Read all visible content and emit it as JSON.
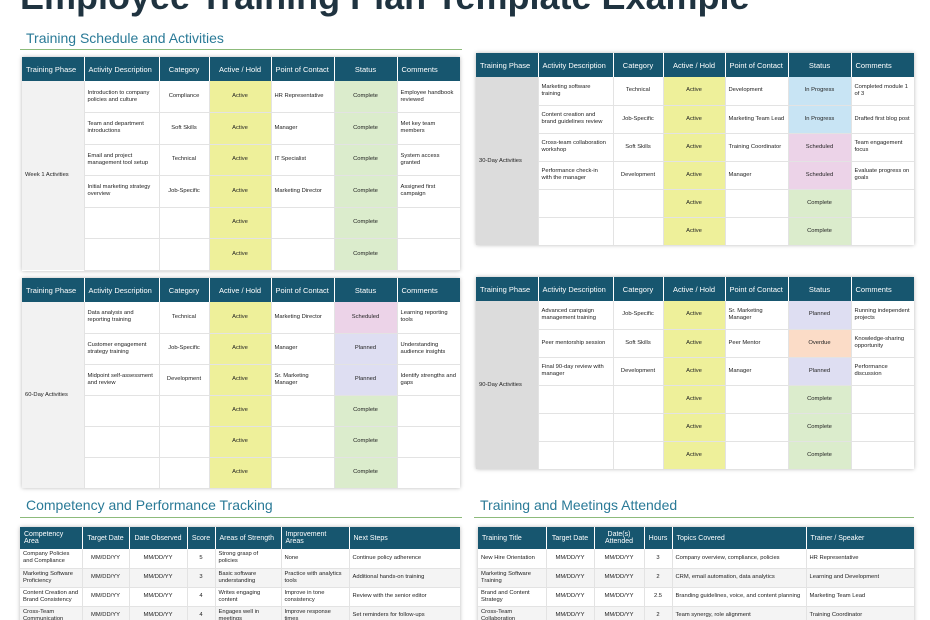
{
  "page": {
    "title": "Employee Training Plan Template Example"
  },
  "sections": {
    "schedule_title": "Training Schedule and Activities",
    "competency_title": "Competency and Performance Tracking",
    "meetings_title": "Training and Meetings Attended"
  },
  "schedule_headers": [
    "Training Phase",
    "Activity Description",
    "Category",
    "Active / Hold",
    "Point of Contact",
    "Status",
    "Comments"
  ],
  "week1": {
    "phase": "Week 1 Activities",
    "rows": [
      {
        "activity": "Introduction to company policies and culture",
        "category": "Compliance",
        "hold": "Active",
        "contact": "HR Representative",
        "status": "Complete",
        "comments": "Employee handbook reviewed"
      },
      {
        "activity": "Team and department introductions",
        "category": "Soft Skills",
        "hold": "Active",
        "contact": "Manager",
        "status": "Complete",
        "comments": "Met key team members"
      },
      {
        "activity": "Email and project management tool setup",
        "category": "Technical",
        "hold": "Active",
        "contact": "IT Specialist",
        "status": "Complete",
        "comments": "System access granted"
      },
      {
        "activity": "Initial marketing strategy overview",
        "category": "Job-Specific",
        "hold": "Active",
        "contact": "Marketing Director",
        "status": "Complete",
        "comments": "Assigned first campaign"
      },
      {
        "activity": "",
        "category": "",
        "hold": "Active",
        "contact": "",
        "status": "Complete",
        "comments": ""
      },
      {
        "activity": "",
        "category": "",
        "hold": "Active",
        "contact": "",
        "status": "Complete",
        "comments": ""
      }
    ]
  },
  "day30": {
    "phase": "30-Day Activities",
    "rows": [
      {
        "activity": "Marketing software training",
        "category": "Technical",
        "hold": "Active",
        "contact": "Development",
        "status": "In Progress",
        "comments": "Completed module 1 of 3"
      },
      {
        "activity": "Content creation and brand guidelines review",
        "category": "Job-Specific",
        "hold": "Active",
        "contact": "Marketing Team Lead",
        "status": "In Progress",
        "comments": "Drafted first blog post"
      },
      {
        "activity": "Cross-team collaboration workshop",
        "category": "Soft Skills",
        "hold": "Active",
        "contact": "Training Coordinator",
        "status": "Scheduled",
        "comments": "Team engagement focus"
      },
      {
        "activity": "Performance check-in with the manager",
        "category": "Development",
        "hold": "Active",
        "contact": "Manager",
        "status": "Scheduled",
        "comments": "Evaluate progress on goals"
      },
      {
        "activity": "",
        "category": "",
        "hold": "Active",
        "contact": "",
        "status": "Complete",
        "comments": ""
      },
      {
        "activity": "",
        "category": "",
        "hold": "Active",
        "contact": "",
        "status": "Complete",
        "comments": ""
      }
    ]
  },
  "day60": {
    "phase": "60-Day Activities",
    "rows": [
      {
        "activity": "Data analysis and reporting training",
        "category": "Technical",
        "hold": "Active",
        "contact": "Marketing Director",
        "status": "Scheduled",
        "comments": "Learning reporting tools"
      },
      {
        "activity": "Customer engagement strategy training",
        "category": "Job-Specific",
        "hold": "Active",
        "contact": "Manager",
        "status": "Planned",
        "comments": "Understanding audience insights"
      },
      {
        "activity": "Midpoint self-assessment and review",
        "category": "Development",
        "hold": "Active",
        "contact": "Sr. Marketing Manager",
        "status": "Planned",
        "comments": "Identify strengths and gaps"
      },
      {
        "activity": "",
        "category": "",
        "hold": "Active",
        "contact": "",
        "status": "Complete",
        "comments": ""
      },
      {
        "activity": "",
        "category": "",
        "hold": "Active",
        "contact": "",
        "status": "Complete",
        "comments": ""
      },
      {
        "activity": "",
        "category": "",
        "hold": "Active",
        "contact": "",
        "status": "Complete",
        "comments": ""
      }
    ]
  },
  "day90": {
    "phase": "90-Day Activities",
    "rows": [
      {
        "activity": "Advanced campaign management training",
        "category": "Job-Specific",
        "hold": "Active",
        "contact": "Sr. Marketing Manager",
        "status": "Planned",
        "comments": "Running independent projects"
      },
      {
        "activity": "Peer mentorship session",
        "category": "Soft Skills",
        "hold": "Active",
        "contact": "Peer Mentor",
        "status": "Overdue",
        "comments": "Knowledge-sharing opportunity"
      },
      {
        "activity": "Final 90-day review with manager",
        "category": "Development",
        "hold": "Active",
        "contact": "Manager",
        "status": "Planned",
        "comments": "Performance discussion"
      },
      {
        "activity": "",
        "category": "",
        "hold": "Active",
        "contact": "",
        "status": "Complete",
        "comments": ""
      },
      {
        "activity": "",
        "category": "",
        "hold": "Active",
        "contact": "",
        "status": "Complete",
        "comments": ""
      },
      {
        "activity": "",
        "category": "",
        "hold": "Active",
        "contact": "",
        "status": "Complete",
        "comments": ""
      }
    ]
  },
  "competency": {
    "headers": [
      "Competency Area",
      "Target Date",
      "Date Observed",
      "Score",
      "Areas of Strength",
      "Improvement Areas",
      "Next Steps"
    ],
    "rows": [
      {
        "area": "Company Policies and Compliance",
        "target": "MM/DD/YY",
        "observed": "MM/DD/YY",
        "score": "5",
        "strength": "Strong grasp of policies",
        "improve": "None",
        "next": "Continue policy adherence"
      },
      {
        "area": "Marketing Software Proficiency",
        "target": "MM/DD/YY",
        "observed": "MM/DD/YY",
        "score": "3",
        "strength": "Basic software understanding",
        "improve": "Practice with analytics tools",
        "next": "Additional hands-on training"
      },
      {
        "area": "Content Creation and Brand Consistency",
        "target": "MM/DD/YY",
        "observed": "MM/DD/YY",
        "score": "4",
        "strength": "Writes engaging content",
        "improve": "Improve in tone consistency",
        "next": "Review with the senior editor"
      },
      {
        "area": "Cross-Team Communication",
        "target": "MM/DD/YY",
        "observed": "MM/DD/YY",
        "score": "4",
        "strength": "Engages well in meetings",
        "improve": "Improve response times",
        "next": "Set reminders for follow-ups"
      }
    ]
  },
  "meetings": {
    "headers": [
      "Training Title",
      "Target Date",
      "Date(s) Attended",
      "Hours",
      "Topics Covered",
      "Trainer / Speaker"
    ],
    "rows": [
      {
        "title": "New Hire Orientation",
        "target": "MM/DD/YY",
        "attended": "MM/DD/YY",
        "hours": "3",
        "topics": "Company overview, compliance, policies",
        "trainer": "HR Representative"
      },
      {
        "title": "Marketing Software Training",
        "target": "MM/DD/YY",
        "attended": "MM/DD/YY",
        "hours": "2",
        "topics": "CRM, email automation, data analytics",
        "trainer": "Learning and Development"
      },
      {
        "title": "Brand and Content Strategy",
        "target": "MM/DD/YY",
        "attended": "MM/DD/YY",
        "hours": "2.5",
        "topics": "Branding guidelines, voice, and content planning",
        "trainer": "Marketing Team Lead"
      },
      {
        "title": "Cross-Team Collaboration",
        "target": "MM/DD/YY",
        "attended": "MM/DD/YY",
        "hours": "2",
        "topics": "Team synergy, role alignment",
        "trainer": "Training Coordinator"
      }
    ]
  },
  "status_colors": {
    "Active": "#eef09a",
    "Complete": "#dbeccc",
    "In Progress": "#c8e4f4",
    "Scheduled": "#ecd3e8",
    "Planned": "#dedef2",
    "Overdue": "#fbdcc7"
  }
}
